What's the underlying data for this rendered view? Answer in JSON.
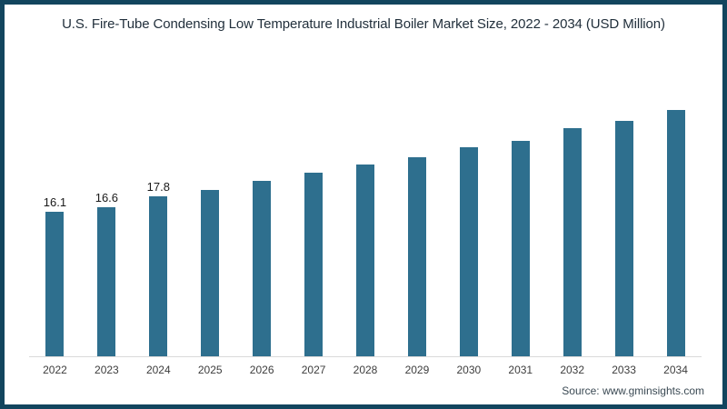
{
  "frame": {
    "border_color": "#12455e",
    "background_color": "#ffffff"
  },
  "header": {
    "title": "U.S. Fire-Tube Condensing Low Temperature Industrial Boiler Market Size, 2022 - 2034 (USD Million)"
  },
  "footer": {
    "source": "Source: www.gminsights.com"
  },
  "chart_data": {
    "type": "bar",
    "title": "U.S. Fire-Tube Condensing Low Temperature Industrial Boiler Market Size, 2022 - 2034 (USD Million)",
    "categories": [
      "2022",
      "2023",
      "2024",
      "2025",
      "2026",
      "2027",
      "2028",
      "2029",
      "2030",
      "2031",
      "2032",
      "2033",
      "2034"
    ],
    "values": [
      16.1,
      16.6,
      17.8,
      18.6,
      19.6,
      20.5,
      21.4,
      22.2,
      23.3,
      24.0,
      25.4,
      26.3,
      27.5
    ],
    "data_labels": [
      "16.1",
      "16.6",
      "17.8",
      "",
      "",
      "",
      "",
      "",
      "",
      "",
      "",
      "",
      ""
    ],
    "xlabel": "",
    "ylabel": "",
    "ylim": [
      0,
      30
    ],
    "grid": false,
    "legend": false,
    "bar_color": "#2e6f8e",
    "axis_line_color": "#d9d9d9"
  }
}
